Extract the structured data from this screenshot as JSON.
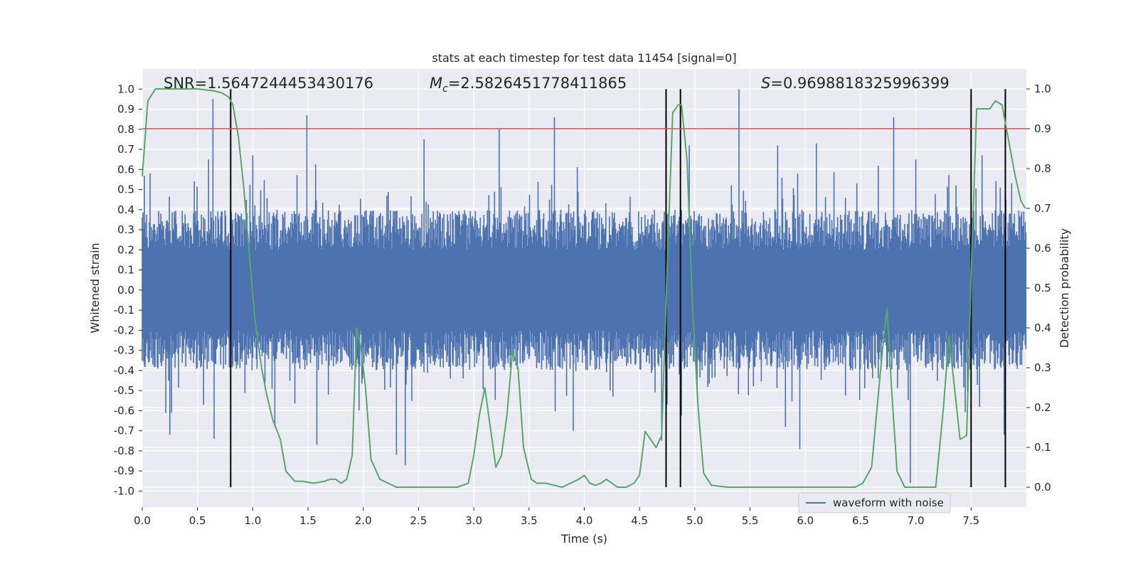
{
  "chart_data": {
    "type": "line",
    "title": "stats at each timestep for test data 11454 [signal=0]",
    "xlabel": "Time (s)",
    "ylabel_left": "Whitened strain",
    "ylabel_right": "Detection probability",
    "xlim": [
      0.0,
      8.0
    ],
    "ylim_left": [
      -1.08,
      1.1
    ],
    "ylim_right": [
      -0.05,
      1.05
    ],
    "xticks": [
      "0.0",
      "0.5",
      "1.0",
      "1.5",
      "2.0",
      "2.5",
      "3.0",
      "3.5",
      "4.0",
      "4.5",
      "5.0",
      "5.5",
      "6.0",
      "6.5",
      "7.0",
      "7.5"
    ],
    "yticks_left": [
      "1.0",
      "0.9",
      "0.8",
      "0.7",
      "0.6",
      "0.5",
      "0.4",
      "0.3",
      "0.2",
      "0.1",
      "0.0",
      "-0.1",
      "-0.2",
      "-0.3",
      "-0.4",
      "-0.5",
      "-0.6",
      "-0.7",
      "-0.8",
      "-0.9",
      "-1.0"
    ],
    "yticks_right": [
      "1.0",
      "0.9",
      "0.8",
      "0.7",
      "0.6",
      "0.5",
      "0.4",
      "0.3",
      "0.2",
      "0.1",
      "0.0"
    ],
    "annotations": {
      "snr": "SNR=1.5647244453430176",
      "mc_symbol": "M",
      "mc_sub": "c",
      "mc_value": "=2.5826451778411865",
      "s_symbol": "S",
      "s_value": "=0.9698818325996399"
    },
    "threshold": {
      "value": 0.9,
      "axis": "right",
      "color": "#c44e52"
    },
    "vertical_lines": [
      0.8,
      4.74,
      4.87,
      7.5,
      7.81
    ],
    "series": [
      {
        "name": "waveform with noise",
        "axis": "left",
        "color": "#4c72b0",
        "description": "dense noise, core band about ±0.2 to ±0.4, spikes up to ~±0.95",
        "spikes": [
          [
            0.64,
            0.95
          ],
          [
            1.49,
            0.87
          ],
          [
            3.23,
            0.8
          ],
          [
            3.73,
            0.86
          ],
          [
            5.4,
            1.0
          ],
          [
            6.8,
            0.86
          ],
          [
            0.6,
            0.65
          ],
          [
            1.0,
            0.67
          ],
          [
            2.55,
            0.75
          ],
          [
            4.95,
            0.72
          ],
          [
            5.75,
            0.72
          ],
          [
            6.1,
            0.73
          ],
          [
            7.0,
            0.65
          ],
          [
            7.6,
            0.67
          ],
          [
            6.95,
            -0.96
          ],
          [
            2.38,
            -0.87
          ],
          [
            2.3,
            -0.82
          ],
          [
            0.65,
            -0.74
          ],
          [
            5.95,
            -0.79
          ],
          [
            1.58,
            -0.77
          ],
          [
            4.7,
            -0.75
          ],
          [
            7.8,
            -0.72
          ],
          [
            0.25,
            -0.72
          ],
          [
            3.9,
            -0.7
          ],
          [
            5.82,
            -0.68
          ],
          [
            1.2,
            -0.68
          ]
        ]
      },
      {
        "name": "detection probability",
        "axis": "right",
        "color": "#55a868",
        "x": [
          0.0,
          0.05,
          0.12,
          0.2,
          0.3,
          0.5,
          0.65,
          0.72,
          0.78,
          0.82,
          0.87,
          0.92,
          0.97,
          1.02,
          1.08,
          1.12,
          1.18,
          1.25,
          1.3,
          1.38,
          1.45,
          1.55,
          1.65,
          1.7,
          1.75,
          1.8,
          1.85,
          1.9,
          1.94,
          1.98,
          2.02,
          2.07,
          2.15,
          2.3,
          2.5,
          2.7,
          2.85,
          2.95,
          3.0,
          3.05,
          3.1,
          3.15,
          3.2,
          3.25,
          3.3,
          3.35,
          3.4,
          3.45,
          3.52,
          3.57,
          3.65,
          3.8,
          3.95,
          4.0,
          4.05,
          4.1,
          4.15,
          4.2,
          4.3,
          4.38,
          4.45,
          4.5,
          4.55,
          4.6,
          4.65,
          4.7,
          4.75,
          4.8,
          4.85,
          4.88,
          4.93,
          4.98,
          5.03,
          5.08,
          5.15,
          5.3,
          5.5,
          5.8,
          6.1,
          6.3,
          6.45,
          6.52,
          6.6,
          6.65,
          6.7,
          6.74,
          6.78,
          6.83,
          6.9,
          7.0,
          7.1,
          7.18,
          7.25,
          7.3,
          7.35,
          7.4,
          7.46,
          7.5,
          7.55,
          7.6,
          7.67,
          7.72,
          7.78,
          7.84,
          7.9,
          7.95,
          7.99
        ],
        "y": [
          0.78,
          0.97,
          1.0,
          1.0,
          1.0,
          1.0,
          0.995,
          0.99,
          0.98,
          0.96,
          0.88,
          0.75,
          0.58,
          0.42,
          0.3,
          0.24,
          0.17,
          0.12,
          0.04,
          0.015,
          0.015,
          0.01,
          0.015,
          0.02,
          0.02,
          0.01,
          0.02,
          0.08,
          0.4,
          0.35,
          0.25,
          0.07,
          0.02,
          0.0,
          0.0,
          0.0,
          0.0,
          0.01,
          0.08,
          0.18,
          0.25,
          0.15,
          0.05,
          0.08,
          0.18,
          0.34,
          0.3,
          0.1,
          0.02,
          0.01,
          0.01,
          0.0,
          0.02,
          0.03,
          0.01,
          0.005,
          0.01,
          0.02,
          0.0,
          0.0,
          0.01,
          0.03,
          0.14,
          0.12,
          0.1,
          0.13,
          0.55,
          0.94,
          0.96,
          0.96,
          0.82,
          0.45,
          0.2,
          0.035,
          0.005,
          0.0,
          0.0,
          0.0,
          0.0,
          0.0,
          0.0,
          0.01,
          0.05,
          0.2,
          0.35,
          0.45,
          0.25,
          0.04,
          0.0,
          0.0,
          0.0,
          0.0,
          0.2,
          0.38,
          0.25,
          0.12,
          0.13,
          0.53,
          0.95,
          0.95,
          0.95,
          0.97,
          0.96,
          0.87,
          0.78,
          0.72,
          0.7
        ]
      },
      {
        "name": "threshold",
        "axis": "right",
        "color": "#c44e52"
      }
    ],
    "legend": {
      "label": "waveform with noise",
      "placement": "bottom-right"
    }
  }
}
